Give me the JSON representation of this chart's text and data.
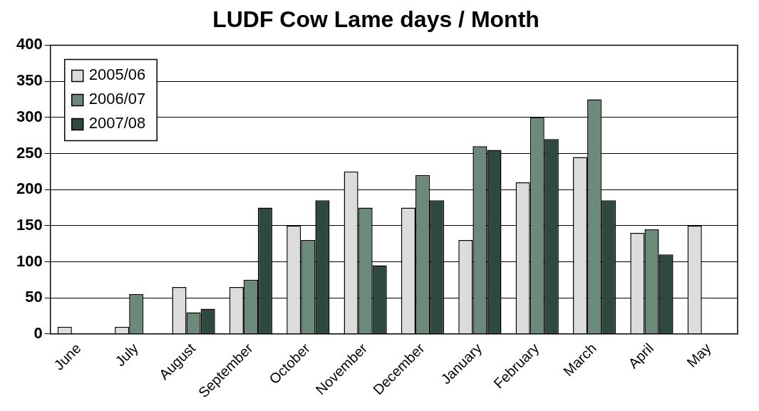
{
  "chart_data": {
    "type": "bar",
    "title": "LUDF Cow Lame days / Month",
    "categories": [
      "June",
      "July",
      "August",
      "September",
      "October",
      "November",
      "December",
      "January",
      "February",
      "March",
      "April",
      "May"
    ],
    "series": [
      {
        "name": "2005/06",
        "color": "#dcdcdc",
        "values": [
          10,
          10,
          65,
          65,
          150,
          225,
          175,
          130,
          210,
          245,
          140,
          150
        ]
      },
      {
        "name": "2006/07",
        "color": "#6b8a7a",
        "values": [
          null,
          55,
          30,
          75,
          130,
          175,
          220,
          260,
          300,
          325,
          145,
          null
        ]
      },
      {
        "name": "2007/08",
        "color": "#2e4a40",
        "values": [
          null,
          null,
          35,
          175,
          185,
          95,
          185,
          255,
          270,
          185,
          110,
          null
        ]
      }
    ],
    "ylim": [
      0,
      400
    ],
    "yticks": [
      0,
      50,
      100,
      150,
      200,
      250,
      300,
      350,
      400
    ],
    "grid": "y",
    "legend": "top left"
  }
}
